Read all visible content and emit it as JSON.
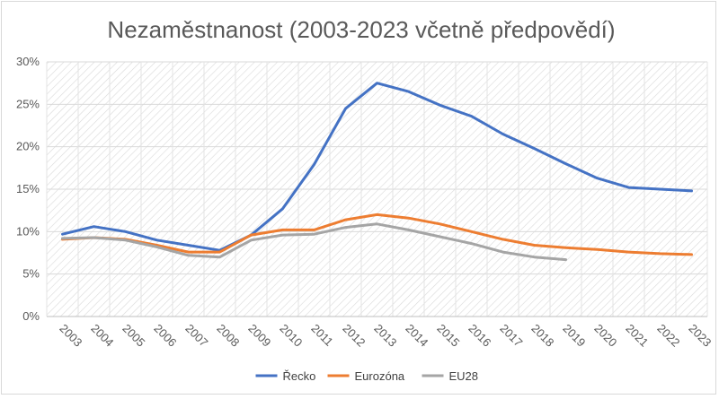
{
  "chart_data": {
    "type": "line",
    "title": "Nezaměstnanost (2003-2023 včetně předpovědí)",
    "xlabel": "",
    "ylabel": "",
    "ylim": [
      0,
      30
    ],
    "y_ticks": [
      "0%",
      "5%",
      "10%",
      "15%",
      "20%",
      "25%",
      "30%"
    ],
    "y_tick_values": [
      0,
      5,
      10,
      15,
      20,
      25,
      30
    ],
    "categories": [
      "2003",
      "2004",
      "2005",
      "2006",
      "2007",
      "2008",
      "2009",
      "2010",
      "2011",
      "2012",
      "2013",
      "2014",
      "2015",
      "2016",
      "2017",
      "2018",
      "2019",
      "2020",
      "2021",
      "2022",
      "2023"
    ],
    "grid": true,
    "legend_position": "bottom",
    "series": [
      {
        "name": "Řecko",
        "color": "#4472c4",
        "values": [
          9.7,
          10.6,
          10.0,
          9.0,
          8.4,
          7.8,
          9.6,
          12.7,
          17.9,
          24.5,
          27.5,
          26.5,
          24.9,
          23.6,
          21.5,
          19.8,
          18.0,
          16.3,
          15.2,
          15.0,
          14.8
        ]
      },
      {
        "name": "Eurozóna",
        "color": "#ed7d31",
        "values": [
          9.1,
          9.3,
          9.1,
          8.4,
          7.6,
          7.6,
          9.6,
          10.2,
          10.2,
          11.4,
          12.0,
          11.6,
          10.9,
          10.0,
          9.1,
          8.4,
          8.1,
          7.9,
          7.6,
          7.4,
          7.3
        ]
      },
      {
        "name": "EU28",
        "color": "#a5a5a5",
        "values": [
          9.2,
          9.3,
          9.0,
          8.2,
          7.2,
          7.0,
          9.0,
          9.6,
          9.7,
          10.5,
          10.9,
          10.2,
          9.4,
          8.6,
          7.6,
          7.0,
          6.7,
          null,
          null,
          null,
          null
        ]
      }
    ]
  }
}
